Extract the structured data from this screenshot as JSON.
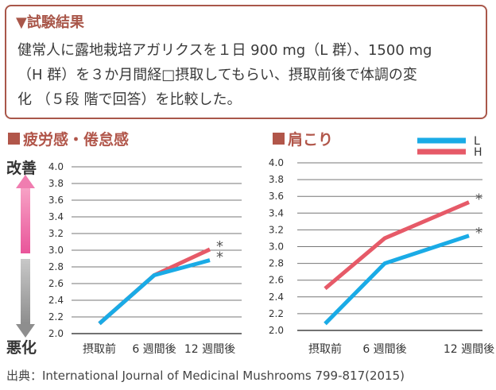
{
  "header": {
    "title": "▼試験結果",
    "body_lines": [
      "健常人に露地栽培アガリクスを１日 900 mg（L 群）、1500 mg",
      "（H 群）を３か月間経□摂取してもらい、摂取前後で体調の変",
      "化 （５段 階で回答）を比較した。"
    ]
  },
  "axis_left": {
    "improve": "改善",
    "worse": "悪化"
  },
  "source": "出典：International Journal of Medicinal Mushrooms 799-817(2015)",
  "colors": {
    "L": "#1aabe6",
    "H": "#e65a68",
    "heading": "#b1564a",
    "arrow_up": "#f06aa0",
    "arrow_down": "#9a9a9a"
  },
  "chart_data": [
    {
      "type": "line",
      "title": "疲労感・倦怠感",
      "categories": [
        "摂取前",
        "6 週間後",
        "12 週間後"
      ],
      "ylim": [
        2.0,
        4.0
      ],
      "yticks": [
        "2.0",
        "2.2",
        "2.4",
        "2.6",
        "2.8",
        "3.0",
        "3.2",
        "3.4",
        "3.6",
        "3.8",
        "4.0"
      ],
      "grid": true,
      "series": [
        {
          "name": "L",
          "values": [
            2.12,
            2.7,
            2.88
          ]
        },
        {
          "name": "H",
          "values": [
            2.12,
            2.7,
            3.01
          ]
        }
      ],
      "annotations": [
        {
          "series": "H",
          "index": 2,
          "text": "*"
        },
        {
          "series": "L",
          "index": 2,
          "text": "*"
        }
      ]
    },
    {
      "type": "line",
      "title": "肩こり",
      "categories": [
        "摂取前",
        "6 週間後",
        "12 週間後"
      ],
      "ylim": [
        2.0,
        4.0
      ],
      "yticks": [
        "2.0",
        "2.2",
        "2.4",
        "2.6",
        "2.8",
        "3.0",
        "3.2",
        "3.4",
        "3.6",
        "3.8",
        "4.0"
      ],
      "grid": true,
      "legend": "top-right",
      "series": [
        {
          "name": "L",
          "values": [
            2.08,
            2.8,
            3.13
          ]
        },
        {
          "name": "H",
          "values": [
            2.5,
            3.1,
            3.53
          ]
        }
      ],
      "annotations": [
        {
          "series": "H",
          "index": 2,
          "text": "*"
        },
        {
          "series": "L",
          "index": 2,
          "text": "*"
        }
      ]
    }
  ]
}
